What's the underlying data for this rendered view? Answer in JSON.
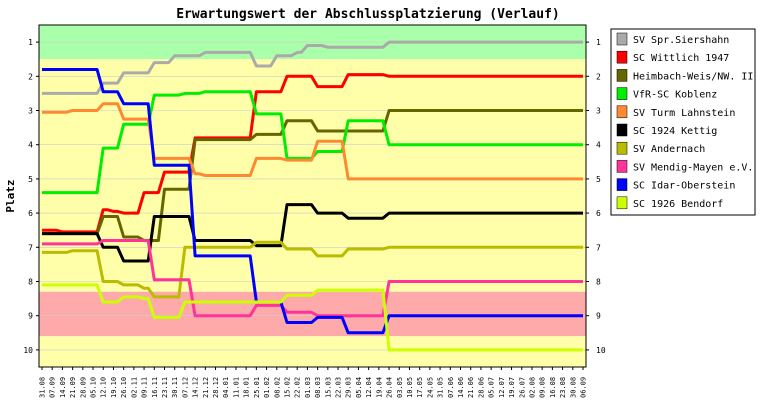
{
  "chart_data": {
    "type": "line",
    "title": "Erwartungswert der Abschlussplatzierung (Verlauf)",
    "ylabel": "Platz",
    "ylim": [
      0.5,
      10.5
    ],
    "y_inverted": true,
    "y_ticks": [
      "1",
      "2",
      "3",
      "4",
      "5",
      "6",
      "7",
      "8",
      "9",
      "10"
    ],
    "x_dates": [
      "31.08",
      "07.09",
      "14.09",
      "21.09",
      "28.09",
      "05.10",
      "12.10",
      "19.10",
      "26.10",
      "02.11",
      "09.11",
      "16.11",
      "23.11",
      "30.11",
      "07.12",
      "14.12",
      "21.12",
      "28.12",
      "04.01",
      "11.01",
      "18.01",
      "25.01",
      "01.02",
      "08.02",
      "15.02",
      "22.02",
      "01.03",
      "08.03",
      "15.03",
      "22.03",
      "29.03",
      "05.04",
      "12.04",
      "19.04",
      "26.04",
      "03.05",
      "10.05",
      "17.05",
      "24.05",
      "31.05",
      "07.06",
      "14.06",
      "21.06",
      "28.06",
      "05.07",
      "12.07",
      "19.07",
      "26.07",
      "02.08",
      "09.08",
      "16.08",
      "23.08",
      "30.08",
      "06.09"
    ],
    "bands": [
      {
        "from": 0.5,
        "to": 1.5,
        "color": "#aaffaa"
      },
      {
        "from": 1.5,
        "to": 8.3,
        "color": "#ffffaa"
      },
      {
        "from": 8.3,
        "to": 9.6,
        "color": "#ffaaaa"
      },
      {
        "from": 9.6,
        "to": 10.5,
        "color": "#ffffaa"
      }
    ],
    "series": [
      {
        "name": "SV Spr.Siershahn",
        "color": "#aaaaaa",
        "values": [
          2.5,
          2.5,
          2.5,
          2.5,
          2.5,
          2.5,
          2.2,
          2.2,
          1.9,
          1.9,
          1.9,
          1.6,
          1.6,
          1.4,
          1.4,
          1.4,
          1.3,
          1.3,
          1.3,
          1.3,
          1.3,
          1.7,
          1.7,
          1.4,
          1.4,
          1.3,
          1.1,
          1.1,
          1.15,
          1.15,
          1.15,
          1.15,
          1.15,
          1.15,
          1.0,
          1.0,
          1.0,
          1.0,
          1.0,
          1.0,
          1.0,
          1.0,
          1.0,
          1.0,
          1.0,
          1.0,
          1.0,
          1.0,
          1.0,
          1.0,
          1.0,
          1.0,
          1.0,
          1.0
        ]
      },
      {
        "name": "SC Wittlich 1947",
        "color": "#ff0000",
        "values": [
          6.5,
          6.5,
          6.55,
          6.55,
          6.55,
          6.55,
          5.9,
          5.95,
          6.0,
          6.0,
          5.4,
          5.4,
          4.8,
          4.8,
          4.8,
          3.8,
          3.8,
          3.8,
          3.8,
          3.8,
          3.8,
          2.45,
          2.45,
          2.45,
          2.0,
          2.0,
          2.0,
          2.3,
          2.3,
          2.3,
          1.95,
          1.95,
          1.95,
          1.95,
          2.0,
          2.0,
          2.0,
          2.0,
          2.0,
          2.0,
          2.0,
          2.0,
          2.0,
          2.0,
          2.0,
          2.0,
          2.0,
          2.0,
          2.0,
          2.0,
          2.0,
          2.0,
          2.0,
          2.0
        ]
      },
      {
        "name": "Heimbach-Weis/NW. II",
        "color": "#666600",
        "values": [
          6.6,
          6.6,
          6.6,
          6.6,
          6.6,
          6.6,
          6.1,
          6.1,
          6.7,
          6.7,
          6.8,
          6.8,
          5.3,
          5.3,
          5.3,
          3.85,
          3.85,
          3.85,
          3.85,
          3.85,
          3.85,
          3.7,
          3.7,
          3.7,
          3.3,
          3.3,
          3.3,
          3.6,
          3.6,
          3.6,
          3.6,
          3.6,
          3.6,
          3.6,
          3.0,
          3.0,
          3.0,
          3.0,
          3.0,
          3.0,
          3.0,
          3.0,
          3.0,
          3.0,
          3.0,
          3.0,
          3.0,
          3.0,
          3.0,
          3.0,
          3.0,
          3.0,
          3.0,
          3.0
        ]
      },
      {
        "name": "VfR-SC Koblenz",
        "color": "#00ee00",
        "values": [
          5.4,
          5.4,
          5.4,
          5.4,
          5.4,
          5.4,
          4.1,
          4.1,
          3.4,
          3.4,
          3.4,
          2.55,
          2.55,
          2.55,
          2.5,
          2.5,
          2.45,
          2.45,
          2.45,
          2.45,
          2.45,
          3.1,
          3.1,
          3.1,
          4.4,
          4.4,
          4.4,
          4.2,
          4.2,
          4.2,
          3.3,
          3.3,
          3.3,
          3.3,
          4.0,
          4.0,
          4.0,
          4.0,
          4.0,
          4.0,
          4.0,
          4.0,
          4.0,
          4.0,
          4.0,
          4.0,
          4.0,
          4.0,
          4.0,
          4.0,
          4.0,
          4.0,
          4.0,
          4.0
        ]
      },
      {
        "name": "SV Turm Lahnstein",
        "color": "#ff8833",
        "values": [
          3.05,
          3.05,
          3.05,
          3.0,
          3.0,
          3.0,
          2.8,
          2.8,
          3.25,
          3.25,
          3.25,
          4.4,
          4.4,
          4.4,
          4.4,
          4.85,
          4.9,
          4.9,
          4.9,
          4.9,
          4.9,
          4.4,
          4.4,
          4.4,
          4.45,
          4.45,
          4.45,
          3.9,
          3.9,
          3.9,
          5.0,
          5.0,
          5.0,
          5.0,
          5.0,
          5.0,
          5.0,
          5.0,
          5.0,
          5.0,
          5.0,
          5.0,
          5.0,
          5.0,
          5.0,
          5.0,
          5.0,
          5.0,
          5.0,
          5.0,
          5.0,
          5.0,
          5.0,
          5.0
        ]
      },
      {
        "name": "SC 1924 Kettig",
        "color": "#000000",
        "values": [
          6.6,
          6.6,
          6.6,
          6.6,
          6.6,
          6.6,
          7.0,
          7.0,
          7.4,
          7.4,
          7.4,
          6.1,
          6.1,
          6.1,
          6.1,
          6.8,
          6.8,
          6.8,
          6.8,
          6.8,
          6.8,
          6.95,
          6.95,
          6.95,
          5.75,
          5.75,
          5.75,
          6.0,
          6.0,
          6.0,
          6.15,
          6.15,
          6.15,
          6.15,
          6.0,
          6.0,
          6.0,
          6.0,
          6.0,
          6.0,
          6.0,
          6.0,
          6.0,
          6.0,
          6.0,
          6.0,
          6.0,
          6.0,
          6.0,
          6.0,
          6.0,
          6.0,
          6.0,
          6.0
        ]
      },
      {
        "name": "SV Andernach",
        "color": "#bbbb00",
        "values": [
          7.15,
          7.15,
          7.15,
          7.1,
          7.1,
          7.1,
          8.0,
          8.0,
          8.1,
          8.1,
          8.2,
          8.45,
          8.45,
          8.45,
          7.0,
          7.0,
          7.0,
          7.0,
          7.0,
          7.0,
          7.0,
          6.85,
          6.85,
          6.85,
          7.05,
          7.05,
          7.05,
          7.25,
          7.25,
          7.25,
          7.05,
          7.05,
          7.05,
          7.05,
          7.0,
          7.0,
          7.0,
          7.0,
          7.0,
          7.0,
          7.0,
          7.0,
          7.0,
          7.0,
          7.0,
          7.0,
          7.0,
          7.0,
          7.0,
          7.0,
          7.0,
          7.0,
          7.0,
          7.0
        ]
      },
      {
        "name": "SV Mendig-Mayen e.V.",
        "color": "#ff3399",
        "values": [
          6.9,
          6.9,
          6.9,
          6.9,
          6.9,
          6.9,
          6.8,
          6.8,
          6.8,
          6.8,
          6.8,
          7.95,
          7.95,
          7.95,
          7.95,
          9.0,
          9.0,
          9.0,
          9.0,
          9.0,
          9.0,
          8.7,
          8.7,
          8.7,
          8.9,
          8.9,
          8.9,
          9.0,
          9.0,
          9.0,
          9.0,
          9.0,
          9.0,
          9.0,
          8.0,
          8.0,
          8.0,
          8.0,
          8.0,
          8.0,
          8.0,
          8.0,
          8.0,
          8.0,
          8.0,
          8.0,
          8.0,
          8.0,
          8.0,
          8.0,
          8.0,
          8.0,
          8.0,
          8.0
        ]
      },
      {
        "name": "SC Idar-Oberstein",
        "color": "#0000ff",
        "values": [
          1.8,
          1.8,
          1.8,
          1.8,
          1.8,
          1.8,
          2.45,
          2.45,
          2.8,
          2.8,
          2.8,
          4.6,
          4.6,
          4.6,
          4.6,
          7.25,
          7.25,
          7.25,
          7.25,
          7.25,
          7.25,
          8.6,
          8.6,
          8.6,
          9.2,
          9.2,
          9.2,
          9.05,
          9.05,
          9.05,
          9.5,
          9.5,
          9.5,
          9.5,
          9.0,
          9.0,
          9.0,
          9.0,
          9.0,
          9.0,
          9.0,
          9.0,
          9.0,
          9.0,
          9.0,
          9.0,
          9.0,
          9.0,
          9.0,
          9.0,
          9.0,
          9.0,
          9.0,
          9.0
        ]
      },
      {
        "name": "SC 1926 Bendorf",
        "color": "#ccff00",
        "values": [
          8.1,
          8.1,
          8.1,
          8.1,
          8.1,
          8.1,
          8.6,
          8.6,
          8.45,
          8.45,
          8.5,
          9.05,
          9.05,
          9.05,
          8.6,
          8.6,
          8.6,
          8.6,
          8.6,
          8.6,
          8.6,
          8.6,
          8.6,
          8.6,
          8.4,
          8.4,
          8.4,
          8.25,
          8.25,
          8.25,
          8.25,
          8.25,
          8.25,
          8.25,
          10.0,
          10.0,
          10.0,
          10.0,
          10.0,
          10.0,
          10.0,
          10.0,
          10.0,
          10.0,
          10.0,
          10.0,
          10.0,
          10.0,
          10.0,
          10.0,
          10.0,
          10.0,
          10.0,
          10.0
        ]
      }
    ]
  }
}
